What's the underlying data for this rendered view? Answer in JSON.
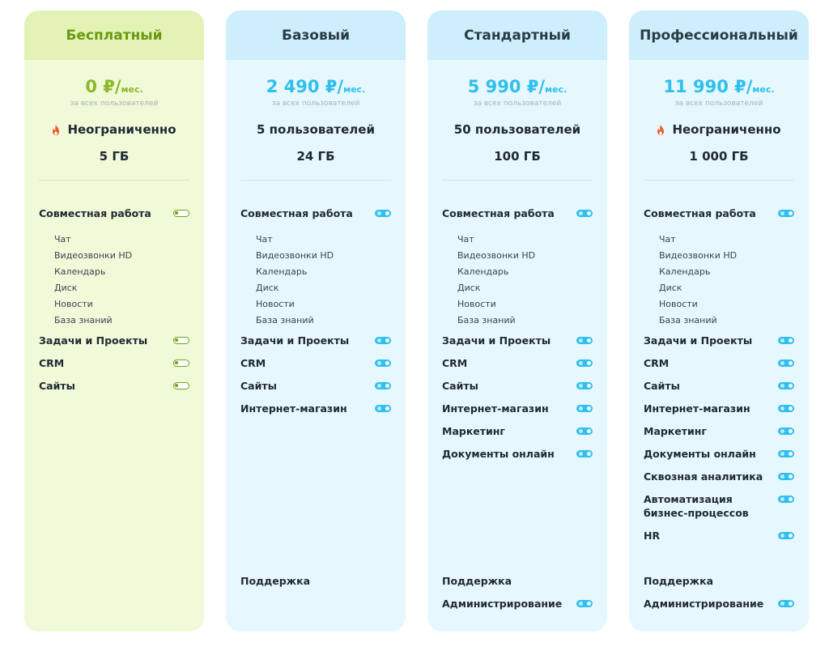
{
  "plans": [
    {
      "name": "Бесплатный",
      "price": "0 ₽/",
      "per": "мес.",
      "price_note": "за всех пользователей",
      "users": "Неограниченно",
      "users_icon": "fire-icon",
      "storage": "5 ГБ",
      "collab": "Совместная работа",
      "collab_items": [
        "Чат",
        "Видеозвонки HD",
        "Календарь",
        "Диск",
        "Новости",
        "База знаний"
      ],
      "features": [
        "Задачи и Проекты",
        "CRM",
        "Сайты"
      ]
    },
    {
      "name": "Базовый",
      "price": "2 490 ₽/",
      "per": "мес.",
      "price_note": "за всех пользователей",
      "users": "5 пользователей",
      "storage": "24 ГБ",
      "collab": "Совместная работа",
      "collab_items": [
        "Чат",
        "Видеозвонки HD",
        "Календарь",
        "Диск",
        "Новости",
        "База знаний"
      ],
      "features": [
        "Задачи и Проекты",
        "CRM",
        "Сайты",
        "Интернет-магазин"
      ],
      "support": "Поддержка"
    },
    {
      "name": "Стандартный",
      "price": "5 990 ₽/",
      "per": "мес.",
      "price_note": "за всех пользователей",
      "users": "50 пользователей",
      "storage": "100 ГБ",
      "collab": "Совместная работа",
      "collab_items": [
        "Чат",
        "Видеозвонки HD",
        "Календарь",
        "Диск",
        "Новости",
        "База знаний"
      ],
      "features": [
        "Задачи и Проекты",
        "CRM",
        "Сайты",
        "Интернет-магазин",
        "Маркетинг",
        "Документы онлайн"
      ],
      "support": "Поддержка",
      "admin": "Администрирование"
    },
    {
      "name": "Профессиональный",
      "price": "11 990 ₽/",
      "per": "мес.",
      "price_note": "за всех пользователей",
      "users": "Неограниченно",
      "users_icon": "fire-icon",
      "storage": "1 000 ГБ",
      "collab": "Совместная работа",
      "collab_items": [
        "Чат",
        "Видеозвонки HD",
        "Календарь",
        "Диск",
        "Новости",
        "База знаний"
      ],
      "features": [
        "Задачи и Проекты",
        "CRM",
        "Сайты",
        "Интернет-магазин",
        "Маркетинг",
        "Документы онлайн",
        "Сквозная аналитика",
        "Автоматизация бизнес-процессов",
        "HR"
      ],
      "support": "Поддержка",
      "admin": "Администрирование"
    }
  ],
  "colors": {
    "free_accent": "#8bb826",
    "paid_accent": "#2ec0ee",
    "fire": "#f0592a"
  }
}
